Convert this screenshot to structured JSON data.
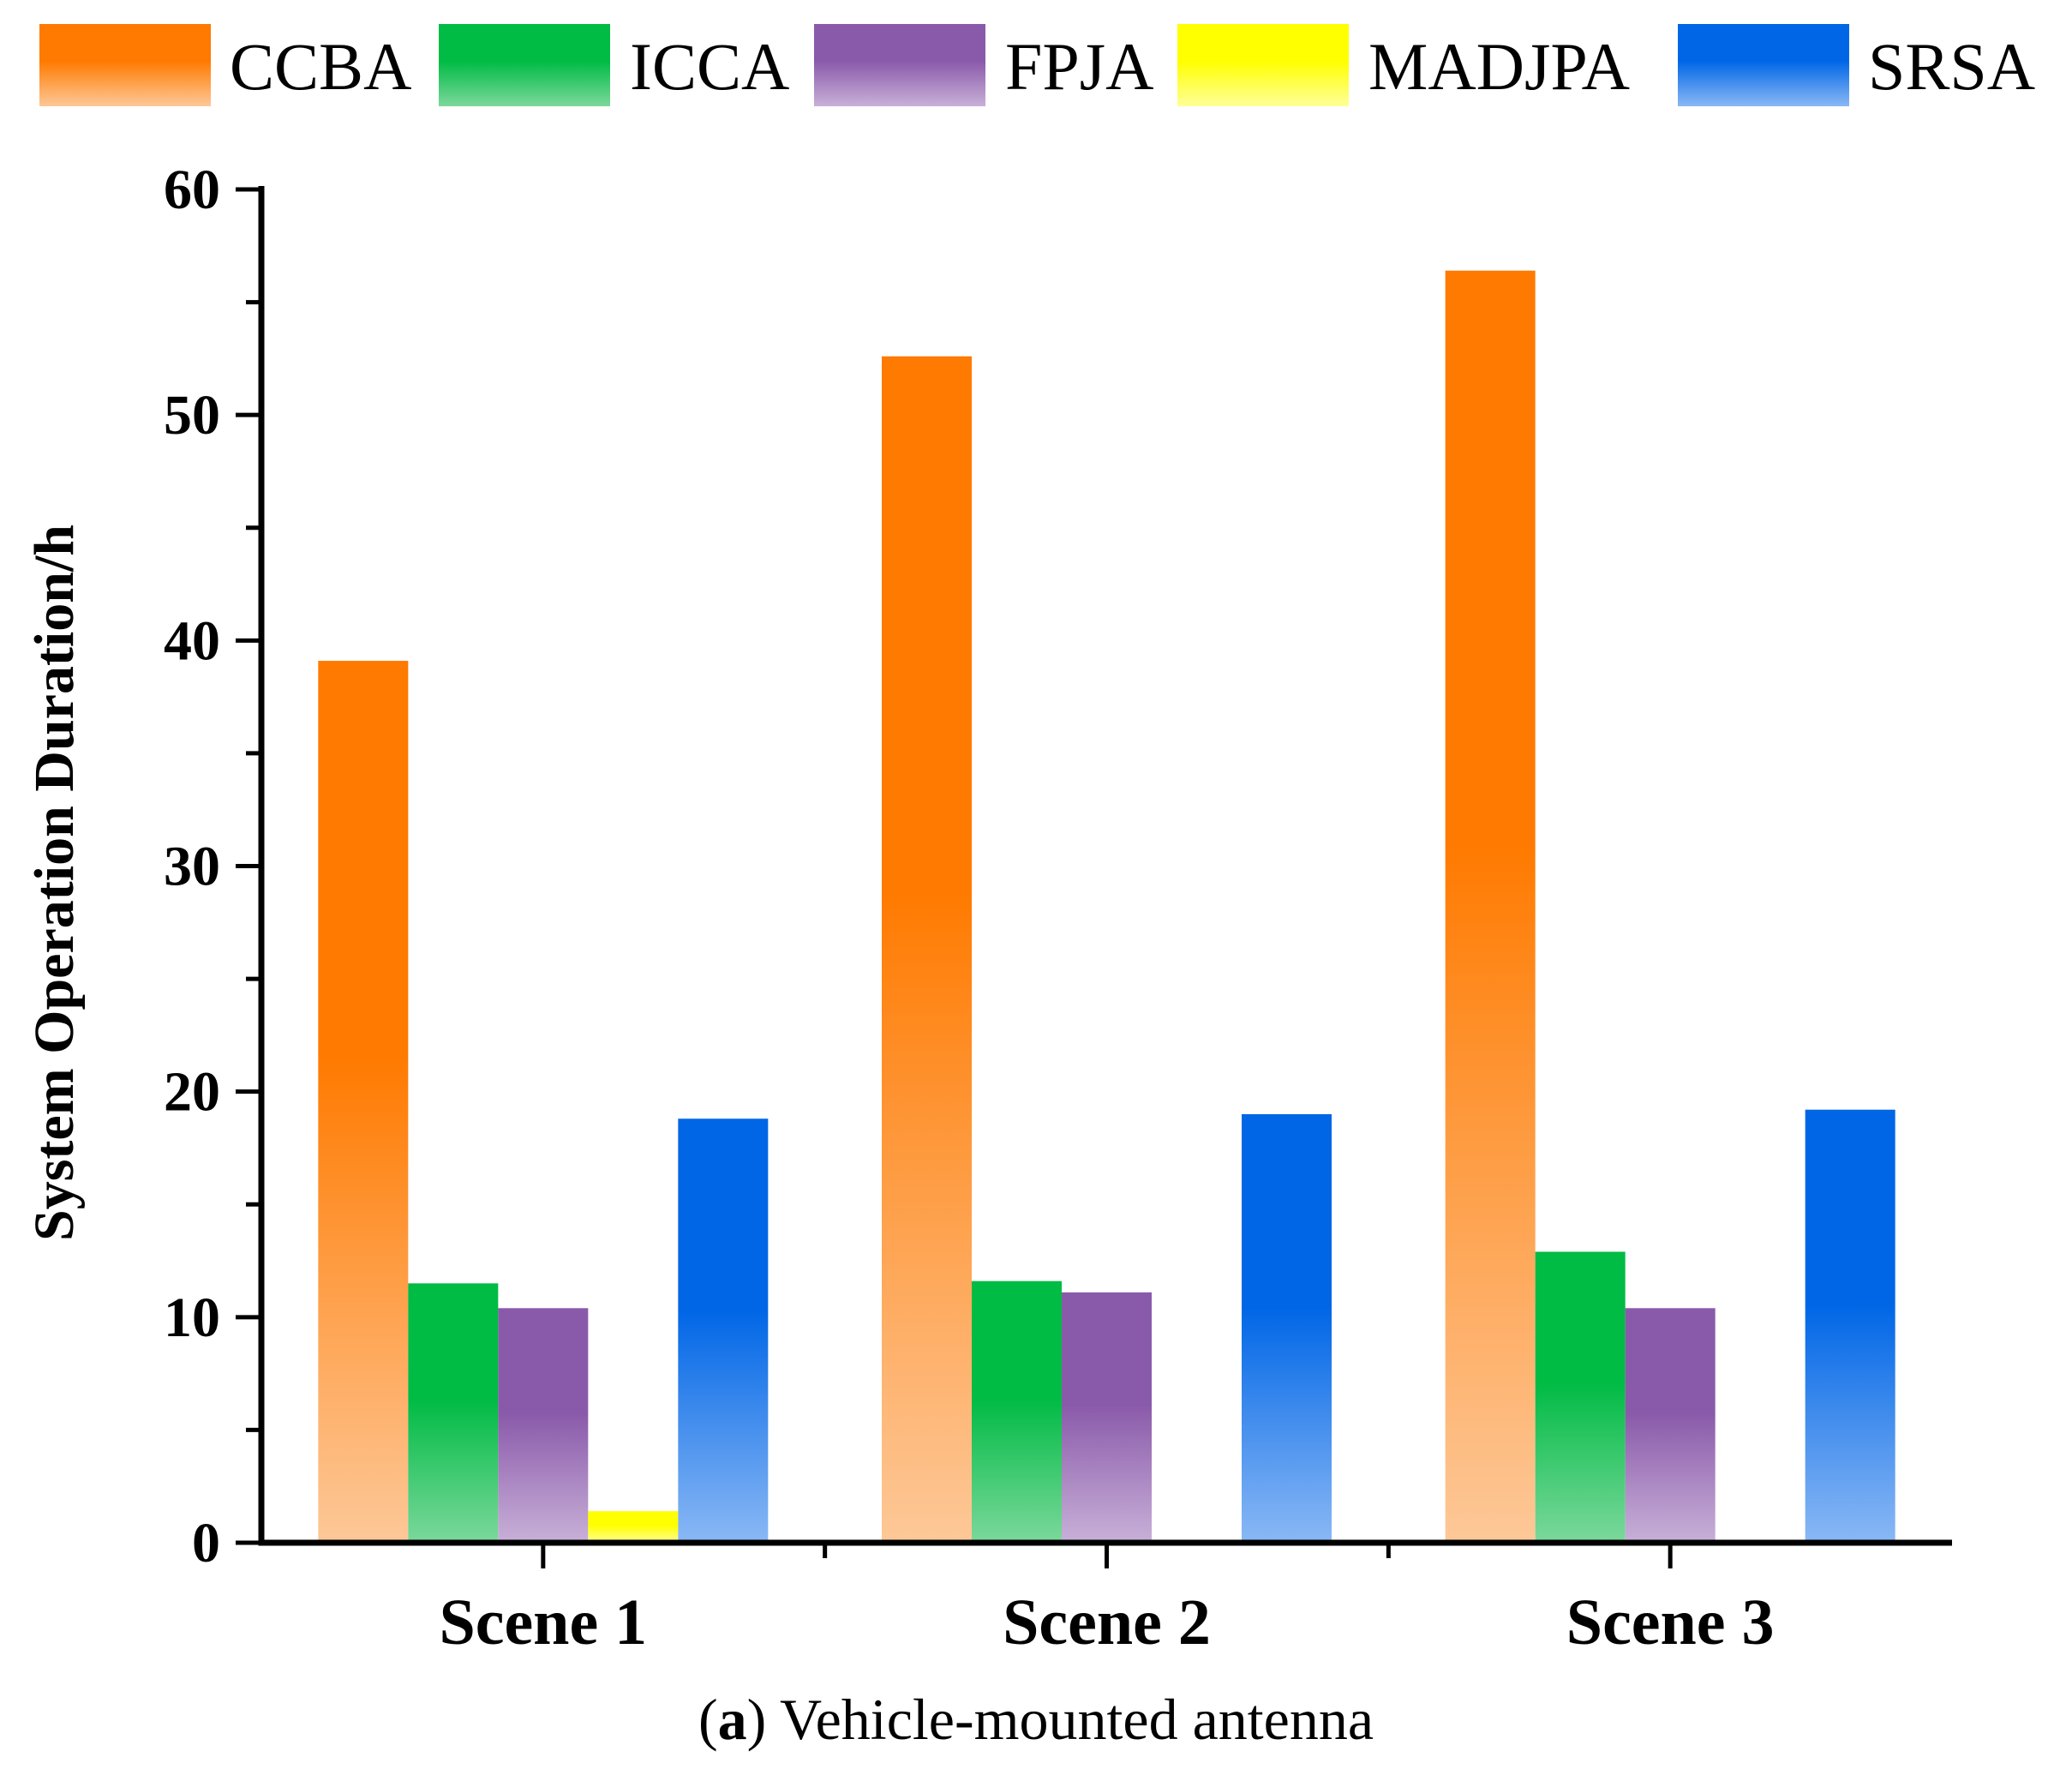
{
  "chart_data": {
    "type": "bar",
    "title": "",
    "xlabel": "",
    "ylabel": "System Operation Duration/h",
    "ylim": [
      0,
      60
    ],
    "y_major_ticks": [
      0,
      10,
      20,
      30,
      40,
      50,
      60
    ],
    "y_minor_step": 5,
    "grid": false,
    "legend_position": "top",
    "categories": [
      "Scene 1",
      "Scene 2",
      "Scene 3"
    ],
    "series": [
      {
        "name": "CCBA",
        "values": [
          39.1,
          52.6,
          56.4
        ],
        "color_top": "#ff7a00",
        "color_bottom": "#fdc898"
      },
      {
        "name": "ICCA",
        "values": [
          11.5,
          11.6,
          12.9
        ],
        "color_top": "#00bb44",
        "color_bottom": "#7cd89c"
      },
      {
        "name": "FPJA",
        "values": [
          10.4,
          11.1,
          10.4
        ],
        "color_top": "#8a5aaa",
        "color_bottom": "#c8b0d8"
      },
      {
        "name": "MADJPA",
        "values": [
          1.4,
          0.1,
          0.0
        ],
        "color_top": "#ffff00",
        "color_bottom": "#ffff99"
      },
      {
        "name": "SRSA",
        "values": [
          18.8,
          19.0,
          19.2
        ],
        "color_top": "#0066e6",
        "color_bottom": "#8ab8f5"
      }
    ]
  },
  "caption": {
    "label": "a",
    "text": " Vehicle-mounted antenna"
  }
}
